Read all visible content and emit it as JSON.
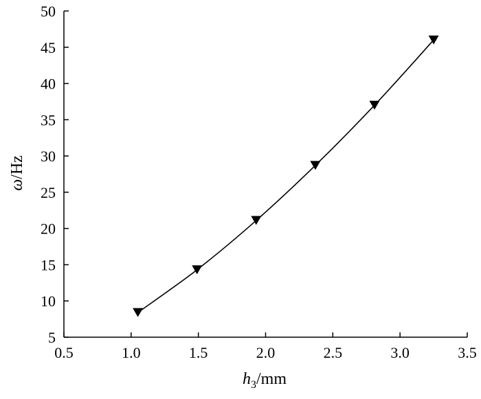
{
  "chart_data": {
    "type": "line",
    "title": "",
    "xlabel": {
      "main": "h",
      "sub": "3",
      "unit": "/mm"
    },
    "ylabel": {
      "main": "ω",
      "unit": "/Hz"
    },
    "xlim": [
      0.5,
      3.5
    ],
    "ylim": [
      5,
      50
    ],
    "xticks": [
      "0.5",
      "1.0",
      "1.5",
      "2.0",
      "2.5",
      "3.0",
      "3.5"
    ],
    "yticks": [
      "5",
      "10",
      "15",
      "20",
      "25",
      "30",
      "35",
      "40",
      "45",
      "50"
    ],
    "grid": false,
    "legend": "none",
    "marker": "triangle-down",
    "color": "#000000",
    "series": [
      {
        "x": [
          1.05,
          1.49,
          1.93,
          2.37,
          2.81,
          3.25
        ],
        "y": [
          8.4,
          14.3,
          21.1,
          28.7,
          37.0,
          46.0
        ]
      }
    ]
  }
}
